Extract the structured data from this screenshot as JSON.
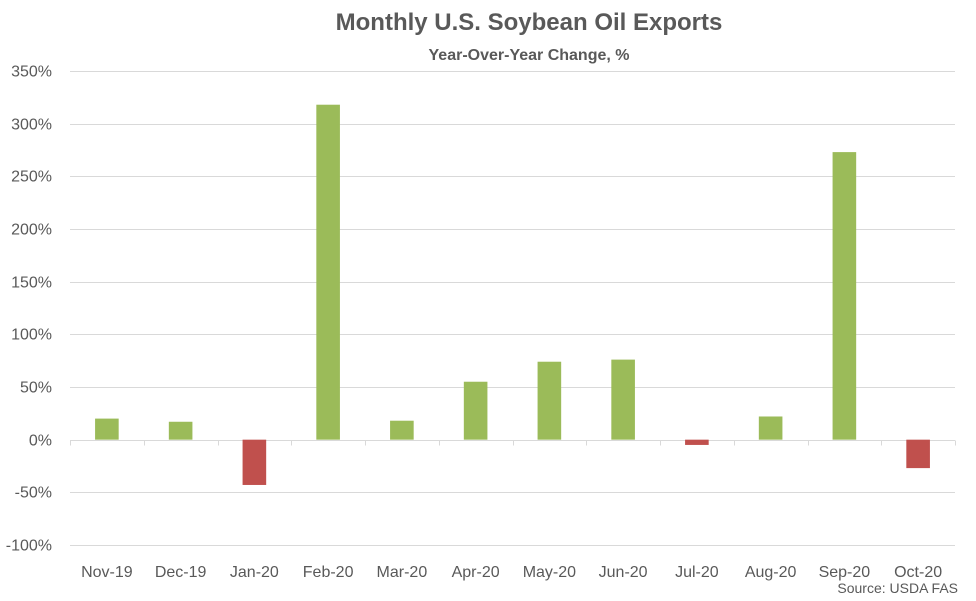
{
  "chart_data": {
    "type": "bar",
    "title": "Monthly U.S. Soybean Oil Exports",
    "subtitle": "Year-Over-Year Change, %",
    "xlabel": "",
    "ylabel": "",
    "source": "Source: USDA FAS",
    "categories": [
      "Nov-19",
      "Dec-19",
      "Jan-20",
      "Feb-20",
      "Mar-20",
      "Apr-20",
      "May-20",
      "Jun-20",
      "Jul-20",
      "Aug-20",
      "Sep-20",
      "Oct-20"
    ],
    "values": [
      20,
      17,
      -43,
      318,
      18,
      55,
      74,
      76,
      -5,
      22,
      273,
      -27
    ],
    "unit": "%",
    "ylim": [
      -100,
      350
    ],
    "yticks": [
      -100,
      -50,
      0,
      50,
      100,
      150,
      200,
      250,
      300,
      350
    ],
    "ytick_labels": [
      "-100%",
      "-50%",
      "0%",
      "50%",
      "100%",
      "150%",
      "200%",
      "250%",
      "300%",
      "350%"
    ],
    "grid": true,
    "legend": "none",
    "colors": {
      "positive": "#9bbb59",
      "negative": "#c0504d"
    }
  }
}
